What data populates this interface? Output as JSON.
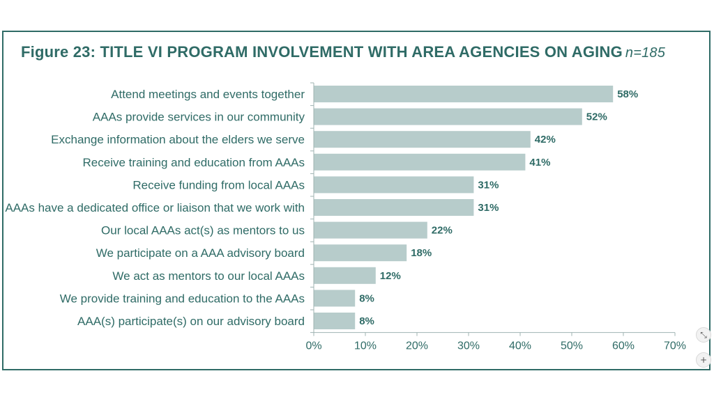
{
  "header": {
    "title": "Figure 23: TITLE VI PROGRAM INVOLVEMENT WITH AREA AGENCIES ON AGING",
    "sample": "n=185"
  },
  "chart_data": {
    "type": "bar",
    "orientation": "horizontal",
    "title": "Figure 23: TITLE VI PROGRAM INVOLVEMENT WITH AREA AGENCIES ON AGING",
    "categories": [
      "Attend meetings and events together",
      "AAAs provide services in our community",
      "Exchange information about the elders we serve",
      "Receive training and education from AAAs",
      "Receive funding from local AAAs",
      "AAAs have a dedicated office or liaison that we work with",
      "Our local AAAs act(s) as mentors to us",
      "We participate on a AAA advisory board",
      "We act as mentors to our local AAAs",
      "We provide training and education to the AAAs",
      "AAA(s) participate(s) on our advisory board"
    ],
    "values": [
      58,
      52,
      42,
      41,
      31,
      31,
      22,
      18,
      12,
      8,
      8
    ],
    "value_labels": [
      "58%",
      "52%",
      "42%",
      "41%",
      "31%",
      "31%",
      "22%",
      "18%",
      "12%",
      "8%",
      "8%"
    ],
    "xlim": [
      0,
      70
    ],
    "xticks": [
      "0%",
      "10%",
      "20%",
      "30%",
      "40%",
      "50%",
      "60%",
      "70%"
    ],
    "xtick_values": [
      0,
      10,
      20,
      30,
      40,
      50,
      60,
      70
    ],
    "bar_color": "#b7cccb",
    "text_color": "#2f6b66",
    "grid": false,
    "legend": "none"
  },
  "controls": {
    "fit_icon": "fit-screen-icon",
    "zoom_icon": "zoom-in-icon",
    "fit_glyph": "⤡",
    "zoom_glyph": "+"
  }
}
